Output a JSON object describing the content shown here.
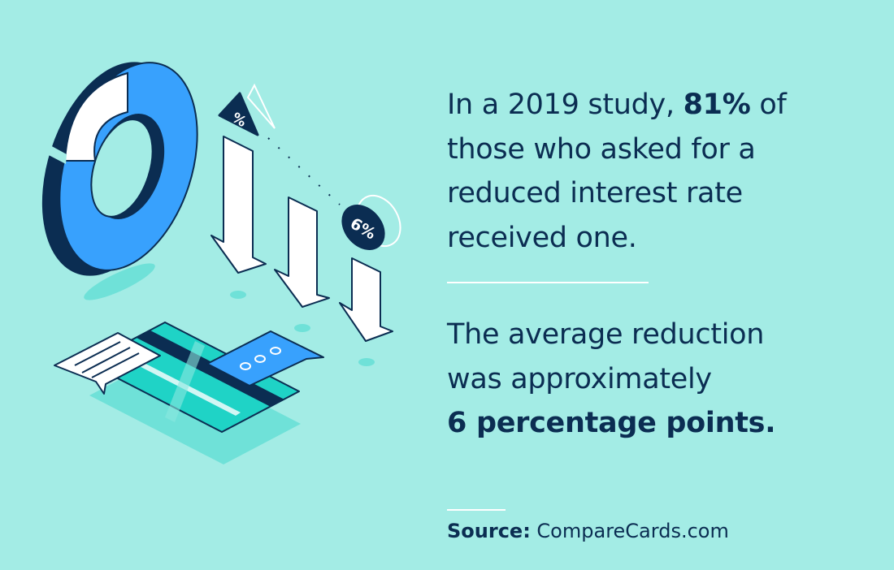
{
  "illustration": {
    "badge_top": "%",
    "badge_rate": "6%",
    "colors": {
      "background": "#a3ece5",
      "navy": "#0b2d52",
      "blue": "#38a1fd",
      "teal": "#1fd3c6",
      "white": "#ffffff"
    }
  },
  "paragraph1": {
    "line1_pre": "In a 2019 study, ",
    "line1_bold": "81%",
    "line1_post": " of",
    "line2": "those who asked for a",
    "line3": "reduced interest rate",
    "line4": "received one."
  },
  "paragraph2": {
    "line1": "The average reduction",
    "line2": "was approximately",
    "line3_bold": "6 percentage points."
  },
  "source": {
    "label": "Source:",
    "value": " CompareCards.com"
  }
}
